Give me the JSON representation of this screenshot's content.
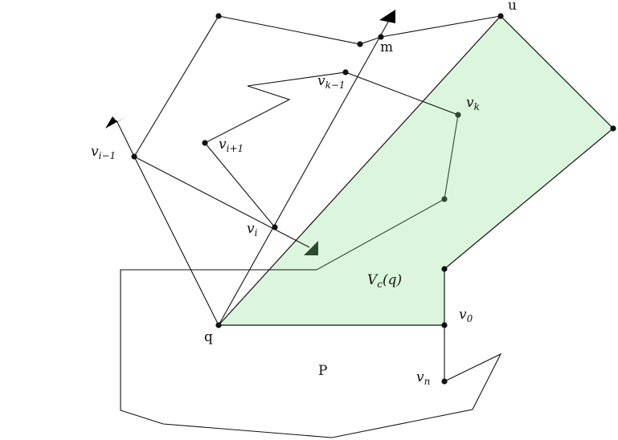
{
  "labels": {
    "u": "u",
    "m": "m",
    "q": "q",
    "P": "P",
    "vc": {
      "base": "V",
      "sub": "c",
      "rest": "(q)"
    },
    "v0": {
      "base": "v",
      "sub": "0"
    },
    "vn": {
      "base": "v",
      "sub": "n"
    },
    "vk": {
      "base": "v",
      "sub": "k"
    },
    "vk1": {
      "base": "v",
      "sub": "k−1"
    },
    "vi": {
      "base": "v",
      "sub": "i"
    },
    "vi1p": {
      "base": "v",
      "sub": "i+1"
    },
    "vi1m": {
      "base": "v",
      "sub": "i−1"
    }
  },
  "colors": {
    "region_fill": "#dbf6dc",
    "region_edge": "#111111",
    "inner_edge": "#2e4a2e",
    "arrow_black": "#000000",
    "arrow_dark_green": "#2c4a2c"
  }
}
